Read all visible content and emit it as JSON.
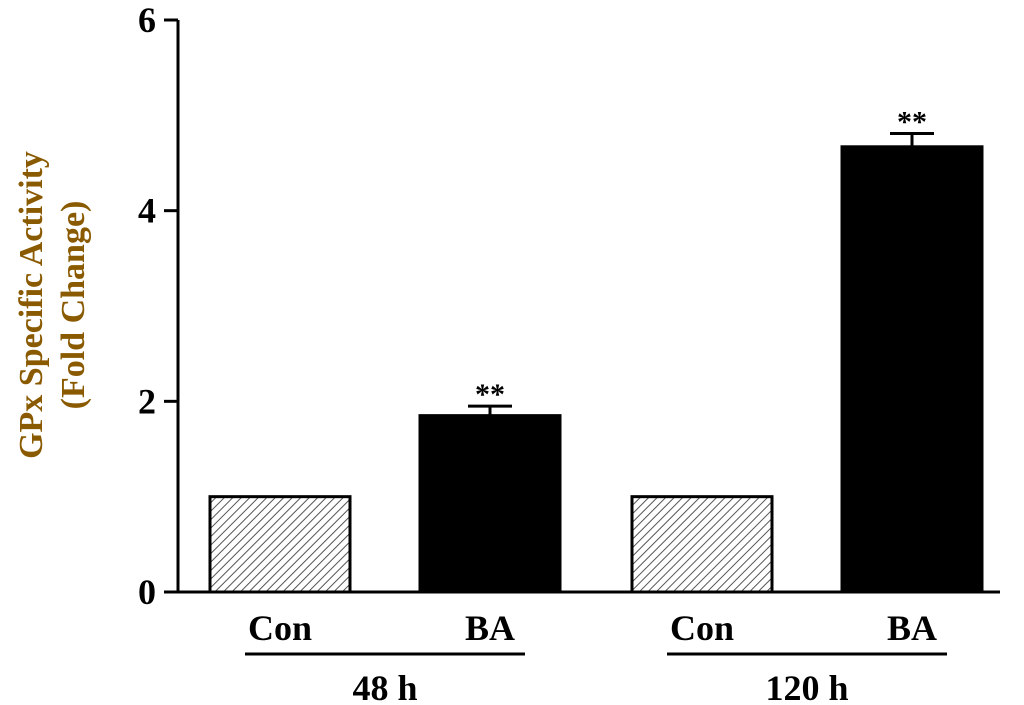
{
  "chart_data": {
    "type": "bar",
    "ylabel_line1": "GPx Specific Activity",
    "ylabel_line2": "(Fold Change)",
    "ylim": [
      0,
      6
    ],
    "yticks": [
      0,
      2,
      4,
      6
    ],
    "groups": [
      {
        "label": "48 h",
        "bars": [
          {
            "category": "Con",
            "value": 1.0,
            "error": 0,
            "significance": "",
            "fill": "hatched"
          },
          {
            "category": "BA",
            "value": 1.85,
            "error": 0.1,
            "significance": "**",
            "fill": "solid"
          }
        ]
      },
      {
        "label": "120 h",
        "bars": [
          {
            "category": "Con",
            "value": 1.0,
            "error": 0,
            "significance": "",
            "fill": "hatched"
          },
          {
            "category": "BA",
            "value": 4.67,
            "error": 0.14,
            "significance": "**",
            "fill": "solid"
          }
        ]
      }
    ],
    "colors": {
      "bar_solid": "#000000",
      "hatch": "#555555",
      "ylabel": "#8a5a00"
    },
    "grid": false,
    "legend": "none"
  }
}
